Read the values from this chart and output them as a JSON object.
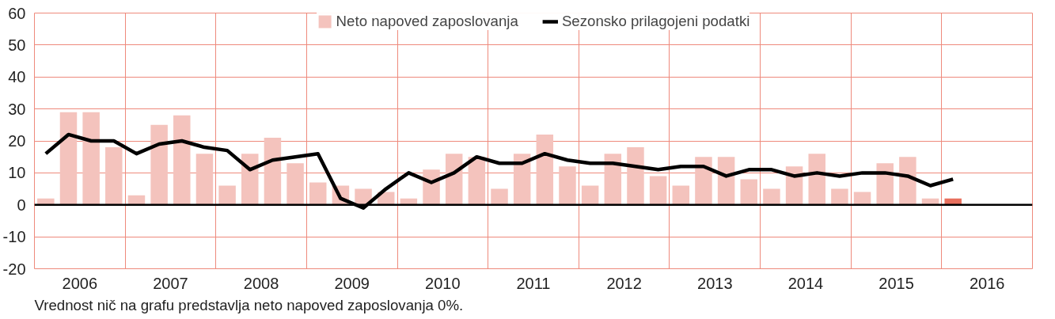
{
  "chart_data": {
    "type": "bar",
    "x": [
      2006.125,
      2006.375,
      2006.625,
      2006.875,
      2007.125,
      2007.375,
      2007.625,
      2007.875,
      2008.125,
      2008.375,
      2008.625,
      2008.875,
      2009.125,
      2009.375,
      2009.625,
      2009.875,
      2010.125,
      2010.375,
      2010.625,
      2010.875,
      2011.125,
      2011.375,
      2011.625,
      2011.875,
      2012.125,
      2012.375,
      2012.625,
      2012.875,
      2013.125,
      2013.375,
      2013.625,
      2013.875,
      2014.125,
      2014.375,
      2014.625,
      2014.875,
      2015.125,
      2015.375,
      2015.625,
      2015.875,
      2016.125
    ],
    "series": [
      {
        "name": "Neto napoved zaposlovanja",
        "color": "#f4c3bd",
        "colors": [
          "#f4c3bd",
          "#f4c3bd",
          "#f4c3bd",
          "#f4c3bd",
          "#f4c3bd",
          "#f4c3bd",
          "#f4c3bd",
          "#f4c3bd",
          "#f4c3bd",
          "#f4c3bd",
          "#f4c3bd",
          "#f4c3bd",
          "#f4c3bd",
          "#f4c3bd",
          "#f4c3bd",
          "#f4c3bd",
          "#f4c3bd",
          "#f4c3bd",
          "#f4c3bd",
          "#f4c3bd",
          "#f4c3bd",
          "#f4c3bd",
          "#f4c3bd",
          "#f4c3bd",
          "#f4c3bd",
          "#f4c3bd",
          "#f4c3bd",
          "#f4c3bd",
          "#f4c3bd",
          "#f4c3bd",
          "#f4c3bd",
          "#f4c3bd",
          "#f4c3bd",
          "#f4c3bd",
          "#f4c3bd",
          "#f4c3bd",
          "#f4c3bd",
          "#f4c3bd",
          "#f4c3bd",
          "#f4c3bd",
          "#e8705e"
        ],
        "values": [
          2,
          29,
          29,
          18,
          3,
          25,
          28,
          16,
          6,
          16,
          21,
          13,
          7,
          6,
          5,
          4,
          2,
          11,
          16,
          15,
          5,
          16,
          22,
          12,
          6,
          16,
          18,
          9,
          6,
          15,
          15,
          8,
          5,
          12,
          16,
          5,
          4,
          13,
          15,
          2,
          2
        ]
      },
      {
        "name": "Sezonsko prilagojeni podatki",
        "type": "line",
        "color": "#000000",
        "values": [
          16,
          22,
          20,
          20,
          16,
          19,
          20,
          18,
          17,
          11,
          14,
          15,
          16,
          2,
          -1,
          5,
          10,
          7,
          10,
          15,
          13,
          13,
          16,
          14,
          13,
          13,
          12,
          11,
          12,
          12,
          9,
          11,
          11,
          9,
          10,
          9,
          10,
          10,
          9,
          6,
          8
        ]
      }
    ],
    "xlim": [
      2006,
      2017
    ],
    "xticks": [
      {
        "value": 2006,
        "label": null
      },
      {
        "value": 2006.5,
        "label": "2006"
      },
      {
        "value": 2007,
        "label": null
      },
      {
        "value": 2007.5,
        "label": "2007"
      },
      {
        "value": 2008,
        "label": null
      },
      {
        "value": 2008.5,
        "label": "2008"
      },
      {
        "value": 2009,
        "label": null
      },
      {
        "value": 2009.5,
        "label": "2009"
      },
      {
        "value": 2010,
        "label": null
      },
      {
        "value": 2010.5,
        "label": "2010"
      },
      {
        "value": 2011,
        "label": null
      },
      {
        "value": 2011.5,
        "label": "2011"
      },
      {
        "value": 2012,
        "label": null
      },
      {
        "value": 2012.5,
        "label": "2012"
      },
      {
        "value": 2013,
        "label": null
      },
      {
        "value": 2013.5,
        "label": "2013"
      },
      {
        "value": 2014,
        "label": null
      },
      {
        "value": 2014.5,
        "label": "2014"
      },
      {
        "value": 2015,
        "label": null
      },
      {
        "value": 2015.5,
        "label": "2015"
      },
      {
        "value": 2016,
        "label": null
      },
      {
        "value": 2016.5,
        "label": "2016"
      },
      {
        "value": 2017,
        "label": null
      }
    ],
    "ylim": [
      -20,
      60
    ],
    "yticks": [
      -20,
      -10,
      0,
      10,
      20,
      30,
      40,
      50,
      60
    ],
    "grid": true,
    "legend": "top",
    "ref_lines": [
      {
        "axis": "y",
        "value": 0,
        "label": null,
        "color": "#000000"
      }
    ],
    "annotations": [
      "Vrednost nič na grafu predstavlja neto napoved zaposlovanja 0%."
    ]
  }
}
